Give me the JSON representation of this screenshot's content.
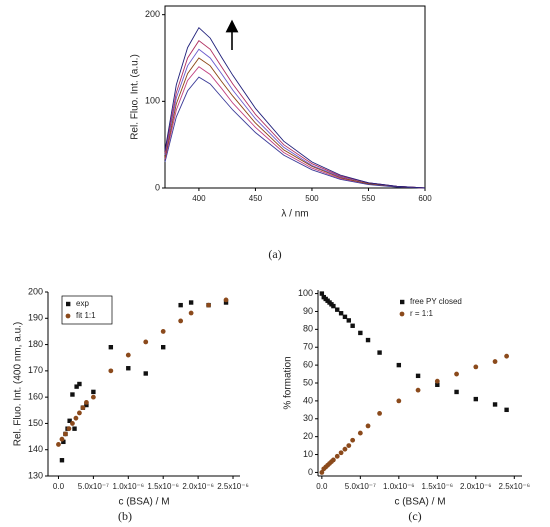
{
  "chart_data": [
    {
      "type": "line",
      "label": "(a)",
      "xlabel": "λ / nm",
      "ylabel": "Rel. Fluo. Int. (a.u.)",
      "xlim": [
        370,
        600
      ],
      "ylim": [
        0,
        210
      ],
      "xticks": [
        400,
        450,
        500,
        550,
        600
      ],
      "yticks": [
        0,
        100,
        200
      ],
      "frame": "box",
      "x": [
        370,
        380,
        390,
        400,
        410,
        420,
        430,
        450,
        475,
        500,
        525,
        550,
        575,
        600
      ],
      "series": [
        {
          "color": "#3b3b98",
          "values": [
            30,
            82,
            112,
            128,
            120,
            105,
            90,
            64,
            38,
            21,
            10,
            4,
            1,
            0
          ]
        },
        {
          "color": "#c04080",
          "values": [
            33,
            90,
            124,
            140,
            131,
            115,
            98,
            70,
            41,
            23,
            11,
            5,
            2,
            0
          ]
        },
        {
          "color": "#8b4513",
          "values": [
            35,
            97,
            132,
            150,
            141,
            123,
            106,
            75,
            44,
            25,
            12,
            5,
            2,
            0
          ]
        },
        {
          "color": "#6a5acd",
          "values": [
            38,
            104,
            141,
            160,
            150,
            132,
            113,
            80,
            47,
            26,
            13,
            6,
            2,
            0
          ]
        },
        {
          "color": "#b03060",
          "values": [
            40,
            110,
            150,
            170,
            160,
            140,
            120,
            85,
            50,
            28,
            14,
            6,
            2,
            0
          ]
        },
        {
          "color": "#1f1f7a",
          "values": [
            43,
            119,
            162,
            185,
            173,
            151,
            130,
            92,
            54,
            30,
            15,
            6,
            2,
            0
          ]
        }
      ]
    },
    {
      "type": "scatter",
      "label": "(b)",
      "xlabel": "c (BSA) / M",
      "ylabel": "Rel. Fluo. Int. (400 nm, a.u.)",
      "xlim": [
        -1.5e-07,
        2.6e-06
      ],
      "ylim": [
        130,
        200
      ],
      "legend": "upper left",
      "legend_box": true,
      "xticks": [
        {
          "value": 0,
          "label": "0.0"
        },
        {
          "value": 5e-07,
          "label": "5.0x10⁻⁷"
        },
        {
          "value": 1e-06,
          "label": "1.0x10⁻⁶"
        },
        {
          "value": 1.5e-06,
          "label": "1.5x10⁻⁶"
        },
        {
          "value": 2e-06,
          "label": "2.0x10⁻⁶"
        },
        {
          "value": 2.5e-06,
          "label": "2.5x10⁻⁶"
        }
      ],
      "yticks": [
        130,
        140,
        150,
        160,
        170,
        180,
        190,
        200
      ],
      "series": [
        {
          "name": "exp",
          "color": "#111111",
          "marker": "square",
          "x": [
            5e-08,
            7e-08,
            1e-07,
            1.3e-07,
            1.6e-07,
            2e-07,
            2.3e-07,
            2.6e-07,
            3e-07,
            3.5e-07,
            4e-07,
            5e-07,
            7.5e-07,
            1e-06,
            1.25e-06,
            1.5e-06,
            1.75e-06,
            1.9e-06,
            2.15e-06,
            2.4e-06
          ],
          "values": [
            136,
            143,
            146,
            148,
            151,
            161,
            148,
            164,
            165,
            156,
            157,
            162,
            179,
            171,
            169,
            179,
            195,
            196,
            195,
            196
          ]
        },
        {
          "name": "fit 1:1",
          "color": "#8b4a1c",
          "marker": "circle",
          "x": [
            0,
            5e-08,
            1e-07,
            1.5e-07,
            2e-07,
            2.5e-07,
            3e-07,
            3.5e-07,
            4e-07,
            5e-07,
            7.5e-07,
            1e-06,
            1.25e-06,
            1.5e-06,
            1.75e-06,
            1.9e-06,
            2.15e-06,
            2.4e-06
          ],
          "values": [
            142,
            144,
            146,
            148,
            150,
            152,
            154,
            156,
            158,
            160,
            170,
            176,
            181,
            185,
            189,
            192,
            195,
            197
          ]
        }
      ]
    },
    {
      "type": "scatter",
      "label": "(c)",
      "xlabel": "c (BSA) / M",
      "ylabel": "% formation",
      "xlim": [
        -5e-08,
        2.6e-06
      ],
      "ylim": [
        -2,
        102
      ],
      "legend": "upper right",
      "legend_box": false,
      "xticks": [
        {
          "value": 0,
          "label": "0.0"
        },
        {
          "value": 5e-07,
          "label": "5.0x10⁻⁷"
        },
        {
          "value": 1e-06,
          "label": "1.0x10⁻⁶"
        },
        {
          "value": 1.5e-06,
          "label": "1.5x10⁻⁶"
        },
        {
          "value": 2e-06,
          "label": "2.0x10⁻⁶"
        },
        {
          "value": 2.5e-06,
          "label": "2.5x10⁻⁶"
        }
      ],
      "yticks": [
        0,
        10,
        20,
        30,
        40,
        50,
        60,
        70,
        80,
        90,
        100
      ],
      "series": [
        {
          "name": "free PY closed",
          "color": "#111111",
          "marker": "square",
          "x": [
            0,
            2.5e-08,
            5e-08,
            7.5e-08,
            1e-07,
            1.25e-07,
            1.5e-07,
            2e-07,
            2.5e-07,
            3e-07,
            3.5e-07,
            4e-07,
            5e-07,
            6e-07,
            7.5e-07,
            1e-06,
            1.25e-06,
            1.5e-06,
            1.75e-06,
            2e-06,
            2.25e-06,
            2.4e-06
          ],
          "values": [
            100,
            98,
            97,
            96,
            95,
            94,
            93,
            91,
            89,
            87,
            85,
            82,
            78,
            74,
            67,
            60,
            54,
            49,
            45,
            41,
            38,
            35
          ]
        },
        {
          "name": "r = 1:1",
          "color": "#8b4a1c",
          "marker": "circle",
          "x": [
            0,
            2.5e-08,
            5e-08,
            7.5e-08,
            1e-07,
            1.25e-07,
            1.5e-07,
            2e-07,
            2.5e-07,
            3e-07,
            3.5e-07,
            4e-07,
            5e-07,
            6e-07,
            7.5e-07,
            1e-06,
            1.25e-06,
            1.5e-06,
            1.75e-06,
            2e-06,
            2.25e-06,
            2.4e-06
          ],
          "values": [
            0,
            2,
            3,
            4,
            5,
            6,
            7,
            9,
            11,
            13,
            15,
            18,
            22,
            26,
            33,
            40,
            46,
            51,
            55,
            59,
            62,
            65
          ]
        }
      ]
    }
  ]
}
